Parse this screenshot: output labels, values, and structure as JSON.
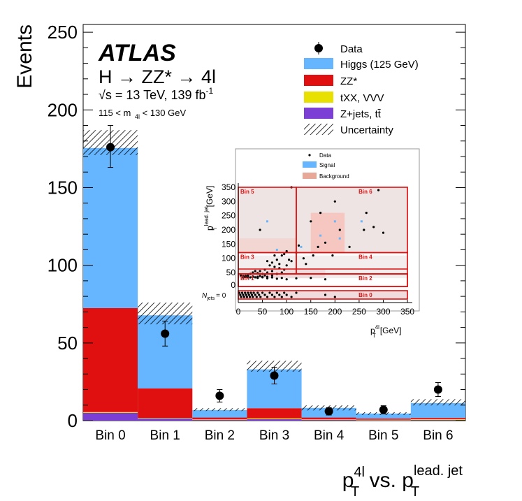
{
  "chart_data": [
    {
      "type": "bar",
      "stacked": true,
      "categories": [
        "Bin 0",
        "Bin 1",
        "Bin 2",
        "Bin 3",
        "Bin 4",
        "Bin 5",
        "Bin 6"
      ],
      "ylabel": "Events",
      "xlabel": {
        "main": "p",
        "sup1": "4l",
        "sub1": "T",
        "mid": " vs. p",
        "sup2": "lead. jet",
        "sub2": "T"
      },
      "ylim": [
        0,
        255
      ],
      "yticks": [
        0,
        50,
        100,
        150,
        200,
        250
      ],
      "series": [
        {
          "name": "Z+jets, tt̄",
          "color": "#7b3fd6",
          "values": [
            5,
            1.5,
            0.5,
            1,
            0.5,
            0.3,
            0.5
          ]
        },
        {
          "name": "tXX, VVV",
          "color": "#e8e000",
          "values": [
            0.5,
            0.3,
            0.3,
            0.5,
            0.3,
            0.3,
            0.5
          ]
        },
        {
          "name": "ZZ*",
          "color": "#e01010",
          "values": [
            67,
            19,
            1.2,
            6.5,
            1.2,
            0.8,
            0.8
          ]
        },
        {
          "name": "Higgs (125 GeV)",
          "color": "#66b5ff",
          "values": [
            103,
            47,
            4.8,
            25,
            6.2,
            3.2,
            9.5
          ]
        }
      ],
      "uncertainty": {
        "name": "Uncertainty",
        "low": [
          171,
          62,
          6.2,
          31.5,
          6.6,
          3.6,
          9.8
        ],
        "high": [
          187,
          76,
          8.0,
          38.5,
          9.8,
          5.4,
          13.8
        ]
      },
      "data": {
        "name": "Data",
        "values": [
          176,
          56,
          16,
          29,
          6,
          7,
          20
        ],
        "err_low": [
          13,
          8,
          4,
          5.4,
          2.4,
          2.6,
          4.5
        ],
        "err_high": [
          14,
          8,
          4,
          5.4,
          2.4,
          2.6,
          4.5
        ]
      },
      "legend_position": "top-right",
      "annotations": {
        "brand": "ATLAS",
        "process": "H → ZZ* → 4l",
        "energy": "√s = 13 TeV, 139 fb",
        "lumi_exp": "-1",
        "mass_window": "115 < m",
        "mass_sub": "4l",
        "mass_upper": " < 130 GeV"
      }
    },
    {
      "type": "scatter",
      "x_label": "p",
      "x_label_sup": "4l",
      "x_label_sub": "T",
      "x_label_unit": "[GeV]",
      "y_label": "p",
      "y_label_sup": "lead. jet",
      "y_label_sub": "T",
      "y_label_unit": "[GeV]",
      "xlim": [
        0,
        360
      ],
      "xticks": [
        0,
        50,
        100,
        150,
        200,
        250,
        300,
        350
      ],
      "yticks": [
        50,
        100,
        150,
        200,
        250,
        300,
        350
      ],
      "njets_label": "N",
      "njets_sub": "jets",
      "njets_value": "= 0",
      "legend": [
        {
          "name": "Data",
          "color": "#000000"
        },
        {
          "name": "Signal",
          "color": "#66b5ff"
        },
        {
          "name": "Background",
          "color": "#e8a898"
        }
      ],
      "bins": [
        {
          "name": "Bin 0",
          "x": [
            0,
            350
          ],
          "y_region": "njet0",
          "label_side": "right"
        },
        {
          "name": "Bin 1",
          "x": [
            0,
            350
          ],
          "y": [
            0,
            30
          ],
          "label_side": "left"
        },
        {
          "name": "Bin 2",
          "x": [
            0,
            350
          ],
          "y": [
            0,
            30
          ],
          "label_side": "right"
        },
        {
          "name": "Bin 3",
          "x": [
            0,
            120
          ],
          "y": [
            30,
            120
          ],
          "label_side": "left"
        },
        {
          "name": "Bin 4",
          "x": [
            120,
            350
          ],
          "y": [
            30,
            120
          ],
          "label_side": "right"
        },
        {
          "name": "Bin 5",
          "x": [
            0,
            120
          ],
          "y": [
            120,
            350
          ],
          "label_side": "left"
        },
        {
          "name": "Bin 6",
          "x": [
            120,
            350
          ],
          "y": [
            120,
            350
          ],
          "label_side": "right"
        }
      ],
      "points": [
        [
          45,
          200
        ],
        [
          110,
          350
        ],
        [
          150,
          230
        ],
        [
          170,
          260
        ],
        [
          180,
          155
        ],
        [
          165,
          140
        ],
        [
          120,
          120
        ],
        [
          135,
          100
        ],
        [
          140,
          80
        ],
        [
          155,
          110
        ],
        [
          125,
          145
        ],
        [
          100,
          125
        ],
        [
          95,
          115
        ],
        [
          90,
          110
        ],
        [
          105,
          95
        ],
        [
          75,
          110
        ],
        [
          80,
          95
        ],
        [
          70,
          85
        ],
        [
          60,
          90
        ],
        [
          65,
          75
        ],
        [
          55,
          60
        ],
        [
          75,
          70
        ],
        [
          85,
          80
        ],
        [
          100,
          75
        ],
        [
          110,
          90
        ],
        [
          60,
          50
        ],
        [
          45,
          55
        ],
        [
          50,
          45
        ],
        [
          40,
          48
        ],
        [
          35,
          55
        ],
        [
          30,
          50
        ],
        [
          25,
          45
        ],
        [
          20,
          40
        ],
        [
          15,
          38
        ],
        [
          12,
          35
        ],
        [
          10,
          32
        ],
        [
          20,
          33
        ],
        [
          30,
          35
        ],
        [
          40,
          35
        ],
        [
          50,
          33
        ],
        [
          60,
          35
        ],
        [
          70,
          40
        ],
        [
          80,
          45
        ],
        [
          90,
          50
        ],
        [
          95,
          60
        ],
        [
          85,
          65
        ],
        [
          70,
          55
        ],
        [
          55,
          40
        ],
        [
          45,
          38
        ],
        [
          35,
          33
        ],
        [
          200,
          300
        ],
        [
          210,
          200
        ],
        [
          230,
          140
        ],
        [
          260,
          200
        ],
        [
          265,
          260
        ],
        [
          280,
          210
        ],
        [
          290,
          340
        ],
        [
          300,
          190
        ],
        [
          195,
          110
        ],
        [
          5,
          5
        ],
        [
          10,
          8
        ],
        [
          15,
          12
        ],
        [
          20,
          6
        ],
        [
          25,
          15
        ],
        [
          30,
          10
        ],
        [
          40,
          18
        ],
        [
          50,
          12
        ],
        [
          60,
          20
        ],
        [
          70,
          15
        ],
        [
          80,
          22
        ],
        [
          90,
          18
        ],
        [
          100,
          25
        ],
        [
          120,
          20
        ],
        [
          150,
          18
        ],
        [
          180,
          25
        ]
      ],
      "njet0_points": [
        2,
        4,
        6,
        8,
        10,
        12,
        14,
        16,
        18,
        20,
        22,
        24,
        26,
        28,
        30,
        32,
        35,
        38,
        40,
        43,
        46,
        50,
        55,
        60,
        65,
        70,
        75,
        80,
        85,
        90,
        95,
        100,
        110,
        120,
        180,
        200
      ]
    }
  ]
}
